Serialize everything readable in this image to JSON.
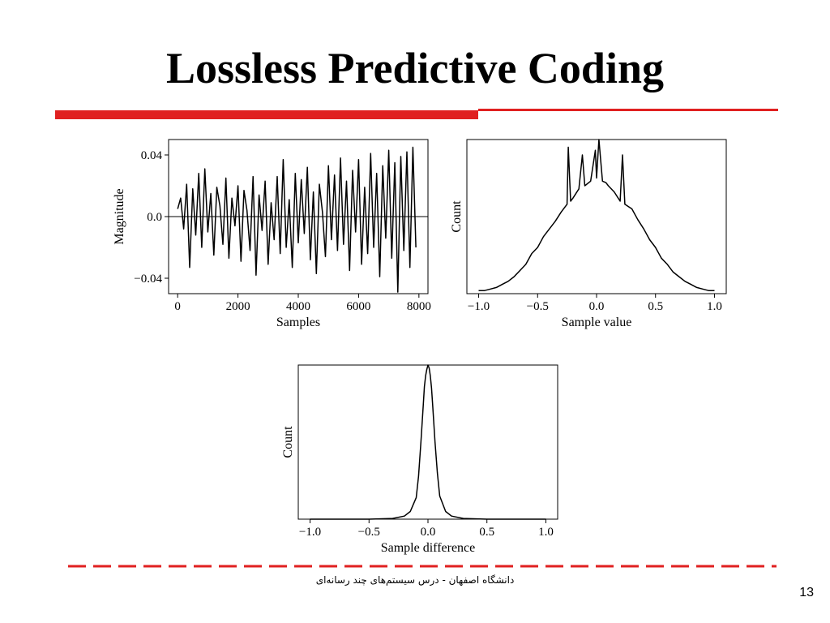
{
  "slide": {
    "title": "Lossless Predictive Coding",
    "footer": "دانشگاه اصفهان - درس سیستم‌های چند رسانه‌ای",
    "page_number": "13",
    "accent_color": "#e02020"
  },
  "chart_data": [
    {
      "type": "line",
      "title": "",
      "xlabel": "Samples",
      "ylabel": "Magnitude",
      "xlim": [
        -300,
        8300
      ],
      "ylim": [
        -0.05,
        0.05
      ],
      "xticks": [
        0,
        2000,
        4000,
        6000,
        8000
      ],
      "xtick_labels": [
        "0",
        "2000",
        "4000",
        "6000",
        "8000"
      ],
      "yticks": [
        -0.04,
        0.0,
        0.04
      ],
      "ytick_labels": [
        "−0.04",
        "0.0",
        "0.04"
      ],
      "zero_line": true,
      "grid": false,
      "series": [
        {
          "x": [
            0,
            100,
            200,
            300,
            400,
            500,
            600,
            700,
            800,
            900,
            1000,
            1100,
            1200,
            1300,
            1400,
            1500,
            1600,
            1700,
            1800,
            1900,
            2000,
            2100,
            2200,
            2300,
            2400,
            2500,
            2600,
            2700,
            2800,
            2900,
            3000,
            3100,
            3200,
            3300,
            3400,
            3500,
            3600,
            3700,
            3800,
            3900,
            4000,
            4100,
            4200,
            4300,
            4400,
            4500,
            4600,
            4700,
            4800,
            4900,
            5000,
            5100,
            5200,
            5300,
            5400,
            5500,
            5600,
            5700,
            5800,
            5900,
            6000,
            6100,
            6200,
            6300,
            6400,
            6500,
            6600,
            6700,
            6800,
            6900,
            7000,
            7100,
            7200,
            7300,
            7400,
            7500,
            7600,
            7700,
            7800,
            7900
          ],
          "y": [
            0.005,
            0.012,
            -0.008,
            0.021,
            -0.033,
            0.018,
            -0.012,
            0.028,
            -0.02,
            0.031,
            -0.01,
            0.015,
            -0.025,
            0.019,
            0.007,
            -0.018,
            0.025,
            -0.027,
            0.012,
            -0.006,
            0.02,
            -0.029,
            0.017,
            0.004,
            -0.022,
            0.026,
            -0.038,
            0.014,
            -0.009,
            0.023,
            -0.031,
            0.009,
            -0.015,
            0.026,
            -0.024,
            0.037,
            -0.02,
            0.011,
            -0.033,
            0.028,
            -0.017,
            0.024,
            -0.011,
            0.032,
            -0.028,
            0.016,
            -0.037,
            0.021,
            0.003,
            -0.026,
            0.033,
            -0.015,
            0.027,
            -0.022,
            0.038,
            -0.018,
            0.023,
            -0.035,
            0.03,
            -0.01,
            0.037,
            -0.031,
            0.019,
            -0.024,
            0.041,
            -0.02,
            0.028,
            -0.039,
            0.033,
            -0.014,
            0.043,
            -0.027,
            0.035,
            -0.049,
            0.039,
            -0.022,
            0.042,
            -0.033,
            0.045,
            -0.02
          ]
        }
      ]
    },
    {
      "type": "line",
      "title": "",
      "xlabel": "Sample value",
      "ylabel": "Count",
      "xlim": [
        -1.1,
        1.1
      ],
      "ylim": [
        0,
        1
      ],
      "xticks": [
        -1.0,
        -0.5,
        0.0,
        0.5,
        1.0
      ],
      "xtick_labels": [
        "−1.0",
        "−0.5",
        "0.0",
        "0.5",
        "1.0"
      ],
      "grid": false,
      "series": [
        {
          "x": [
            -1.0,
            -0.95,
            -0.9,
            -0.85,
            -0.8,
            -0.75,
            -0.7,
            -0.65,
            -0.6,
            -0.55,
            -0.5,
            -0.45,
            -0.4,
            -0.35,
            -0.3,
            -0.25,
            -0.24,
            -0.22,
            -0.2,
            -0.15,
            -0.12,
            -0.1,
            -0.05,
            -0.01,
            0.0,
            0.02,
            0.05,
            0.08,
            0.1,
            0.15,
            0.2,
            0.22,
            0.24,
            0.3,
            0.35,
            0.4,
            0.45,
            0.5,
            0.55,
            0.6,
            0.65,
            0.7,
            0.75,
            0.8,
            0.85,
            0.9,
            0.95,
            1.0
          ],
          "y": [
            0.02,
            0.02,
            0.03,
            0.04,
            0.06,
            0.08,
            0.11,
            0.15,
            0.19,
            0.26,
            0.3,
            0.37,
            0.42,
            0.47,
            0.53,
            0.58,
            0.95,
            0.6,
            0.62,
            0.68,
            0.9,
            0.7,
            0.73,
            0.93,
            0.75,
            1.0,
            0.73,
            0.72,
            0.7,
            0.66,
            0.6,
            0.9,
            0.58,
            0.55,
            0.48,
            0.42,
            0.35,
            0.3,
            0.23,
            0.19,
            0.14,
            0.11,
            0.08,
            0.06,
            0.04,
            0.03,
            0.02,
            0.02
          ]
        }
      ]
    },
    {
      "type": "line",
      "title": "",
      "xlabel": "Sample difference",
      "ylabel": "Count",
      "xlim": [
        -1.1,
        1.1
      ],
      "ylim": [
        0,
        1
      ],
      "xticks": [
        -1.0,
        -0.5,
        0.0,
        0.5,
        1.0
      ],
      "xtick_labels": [
        "−1.0",
        "−0.5",
        "0.0",
        "0.5",
        "1.0"
      ],
      "grid": false,
      "series": [
        {
          "x": [
            -1.0,
            -0.5,
            -0.3,
            -0.2,
            -0.15,
            -0.1,
            -0.08,
            -0.06,
            -0.04,
            -0.03,
            -0.02,
            -0.01,
            0.0,
            0.01,
            0.02,
            0.03,
            0.04,
            0.06,
            0.08,
            0.1,
            0.15,
            0.2,
            0.3,
            0.5,
            1.0
          ],
          "y": [
            0.0,
            0.0,
            0.005,
            0.02,
            0.05,
            0.14,
            0.28,
            0.5,
            0.74,
            0.86,
            0.93,
            0.97,
            1.0,
            0.98,
            0.93,
            0.85,
            0.74,
            0.5,
            0.3,
            0.15,
            0.05,
            0.02,
            0.005,
            0.0,
            0.0
          ]
        }
      ]
    }
  ]
}
